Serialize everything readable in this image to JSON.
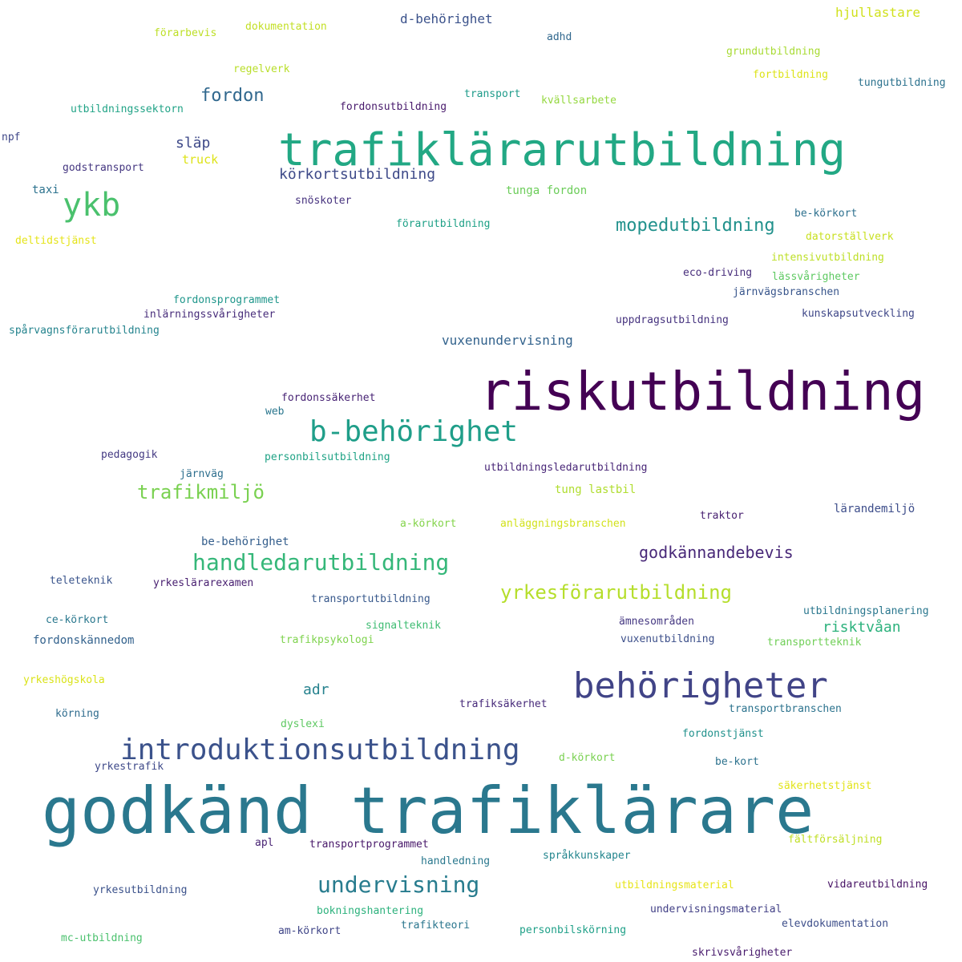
{
  "words": [
    {
      "text": "godkänd trafiklärare",
      "color": "#2a788e"
    },
    {
      "text": "riskutbildning",
      "color": "#440154"
    },
    {
      "text": "trafiklärarutbildning",
      "color": "#22a884"
    },
    {
      "text": "behörigheter",
      "color": "#414487"
    },
    {
      "text": "introduktionsutbildning",
      "color": "#3b528b"
    },
    {
      "text": "b-behörighet",
      "color": "#1f9e89"
    },
    {
      "text": "ykb",
      "color": "#4ac16d"
    },
    {
      "text": "handledarutbildning",
      "color": "#35b779"
    },
    {
      "text": "undervisning",
      "color": "#287c8e"
    },
    {
      "text": "yrkesförarutbildning",
      "color": "#b5de2b"
    },
    {
      "text": "trafikmiljö",
      "color": "#7ad151"
    },
    {
      "text": "mopedutbildning",
      "color": "#21918c"
    },
    {
      "text": "fordon",
      "color": "#31688e"
    },
    {
      "text": "godkännandebevis",
      "color": "#482878"
    },
    {
      "text": "körkortsutbildning",
      "color": "#3e4a89"
    },
    {
      "text": "risktvåan",
      "color": "#2db27d"
    },
    {
      "text": "adr",
      "color": "#26828e"
    },
    {
      "text": "släp",
      "color": "#3e4989"
    },
    {
      "text": "vuxenundervisning",
      "color": "#33638d"
    },
    {
      "text": "d-behörighet",
      "color": "#3b528b"
    },
    {
      "text": "hjullastare",
      "color": "#d0e11c"
    },
    {
      "text": "förarbevis",
      "color": "#bddf26"
    },
    {
      "text": "dokumentation",
      "color": "#c2df23"
    },
    {
      "text": "adhd",
      "color": "#31688e"
    },
    {
      "text": "grundutbildning",
      "color": "#a8db34"
    },
    {
      "text": "regelverk",
      "color": "#b8de29"
    },
    {
      "text": "fortbildning",
      "color": "#dde318"
    },
    {
      "text": "tungutbildning",
      "color": "#2c728e"
    },
    {
      "text": "utbildningssektorn",
      "color": "#20a386"
    },
    {
      "text": "fordonsutbildning",
      "color": "#481a6c"
    },
    {
      "text": "transport",
      "color": "#1e9b8a"
    },
    {
      "text": "kvällsarbete",
      "color": "#95d840"
    },
    {
      "text": "npf",
      "color": "#3f4788"
    },
    {
      "text": "godstransport",
      "color": "#453781"
    },
    {
      "text": "truck",
      "color": "#dde318"
    },
    {
      "text": "taxi",
      "color": "#2c728e"
    },
    {
      "text": "snöskoter",
      "color": "#46327e"
    },
    {
      "text": "tunga fordon",
      "color": "#6ccd5a"
    },
    {
      "text": "förarutbildning",
      "color": "#1fa187"
    },
    {
      "text": "be-körkort",
      "color": "#2d708e"
    },
    {
      "text": "deltidstjänst",
      "color": "#e5e419"
    },
    {
      "text": "datorställverk",
      "color": "#c8e020"
    },
    {
      "text": "intensivutbildning",
      "color": "#bddf26"
    },
    {
      "text": "eco-driving",
      "color": "#472d7b"
    },
    {
      "text": "lässvårigheter",
      "color": "#5ec962"
    },
    {
      "text": "järnvägsbranschen",
      "color": "#39568c"
    },
    {
      "text": "fordonsprogrammet",
      "color": "#1f968b"
    },
    {
      "text": "inlärningssvårigheter",
      "color": "#472c7a"
    },
    {
      "text": "kunskapsutveckling",
      "color": "#3f4788"
    },
    {
      "text": "uppdragsutbildning",
      "color": "#46337f"
    },
    {
      "text": "spårvagnsförarutbildning",
      "color": "#25848e"
    },
    {
      "text": "fordonssäkerhet",
      "color": "#482475"
    },
    {
      "text": "web",
      "color": "#2a768e"
    },
    {
      "text": "pedagogik",
      "color": "#443a83"
    },
    {
      "text": "personbilsutbildning",
      "color": "#20a386"
    },
    {
      "text": "utbildningsledarutbildning",
      "color": "#482677"
    },
    {
      "text": "järnväg",
      "color": "#2e6f8e"
    },
    {
      "text": "tung lastbil",
      "color": "#b0dd2f"
    },
    {
      "text": "lärandemiljö",
      "color": "#3d4d8a"
    },
    {
      "text": "traktor",
      "color": "#482071"
    },
    {
      "text": "a-körkort",
      "color": "#84d44b"
    },
    {
      "text": "anläggningsbranschen",
      "color": "#d2e21b"
    },
    {
      "text": "be-behörighet",
      "color": "#355f8d"
    },
    {
      "text": "teleteknik",
      "color": "#3a548c"
    },
    {
      "text": "yrkeslärarexamen",
      "color": "#481f70"
    },
    {
      "text": "transportutbildning",
      "color": "#38598c"
    },
    {
      "text": "utbildningsplanering",
      "color": "#2a778e"
    },
    {
      "text": "ämnesområden",
      "color": "#453882"
    },
    {
      "text": "ce-körkort",
      "color": "#2a788e"
    },
    {
      "text": "signalteknik",
      "color": "#3fbc73"
    },
    {
      "text": "fordonskännedom",
      "color": "#33628d"
    },
    {
      "text": "trafikpsykologi",
      "color": "#7fd34e"
    },
    {
      "text": "vuxenutbildning",
      "color": "#3c4f8a"
    },
    {
      "text": "transportteknik",
      "color": "#70cf57"
    },
    {
      "text": "yrkeshögskola",
      "color": "#dae319"
    },
    {
      "text": "trafiksäkerhet",
      "color": "#472a7a"
    },
    {
      "text": "körning",
      "color": "#2f6c8e"
    },
    {
      "text": "transportbranschen",
      "color": "#2c738e"
    },
    {
      "text": "dyslexi",
      "color": "#5ec962"
    },
    {
      "text": "fordonstjänst",
      "color": "#21918c"
    },
    {
      "text": "d-körkort",
      "color": "#7ad151"
    },
    {
      "text": "yrkestrafik",
      "color": "#3e4989"
    },
    {
      "text": "be-kort",
      "color": "#2c728e"
    },
    {
      "text": "säkerhetstjänst",
      "color": "#e2e418"
    },
    {
      "text": "apl",
      "color": "#482374"
    },
    {
      "text": "transportprogrammet",
      "color": "#48186a"
    },
    {
      "text": "fältförsäljning",
      "color": "#c0df25"
    },
    {
      "text": "språkkunskaper",
      "color": "#24868e"
    },
    {
      "text": "handledning",
      "color": "#2a788e"
    },
    {
      "text": "yrkesutbildning",
      "color": "#3b528b"
    },
    {
      "text": "utbildningsmaterial",
      "color": "#e7e419"
    },
    {
      "text": "vidareutbildning",
      "color": "#471365"
    },
    {
      "text": "bokningshantering",
      "color": "#2db27d"
    },
    {
      "text": "undervisningsmaterial",
      "color": "#424086"
    },
    {
      "text": "trafikteori",
      "color": "#2a768e"
    },
    {
      "text": "elevdokumentation",
      "color": "#3d4e8a"
    },
    {
      "text": "mc-utbildning",
      "color": "#4ac16d"
    },
    {
      "text": "am-körkort",
      "color": "#404688"
    },
    {
      "text": "personbilskörning",
      "color": "#1fa088"
    },
    {
      "text": "skrivsvårigheter",
      "color": "#481b6d"
    }
  ]
}
